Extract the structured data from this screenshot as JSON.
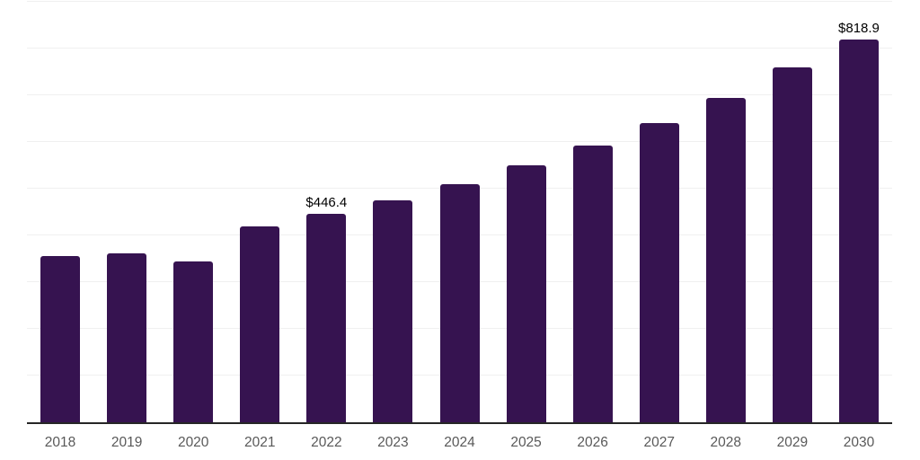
{
  "chart_data": {
    "type": "bar",
    "title": "",
    "xlabel": "",
    "ylabel": "",
    "categories": [
      "2018",
      "2019",
      "2020",
      "2021",
      "2022",
      "2023",
      "2024",
      "2025",
      "2026",
      "2027",
      "2028",
      "2029",
      "2030"
    ],
    "values": [
      355.4,
      362.5,
      344.7,
      419.9,
      446.4,
      475.2,
      509.8,
      550.0,
      592.7,
      641.2,
      694.3,
      758.9,
      818.9
    ],
    "data_labels": {
      "2022": "$446.4",
      "2030": "$818.9"
    },
    "value_prefix": "$",
    "ylim": [
      0,
      900
    ],
    "gridline_step": 100,
    "grid": "horizontal-only",
    "y_tick_labels_visible": false,
    "legend": "none",
    "colors": {
      "bar": "#361350",
      "gridline": "#f0f0f0",
      "axis_line": "#262626",
      "tick_label": "#595959",
      "data_label": "#000000",
      "background": "#ffffff"
    }
  }
}
